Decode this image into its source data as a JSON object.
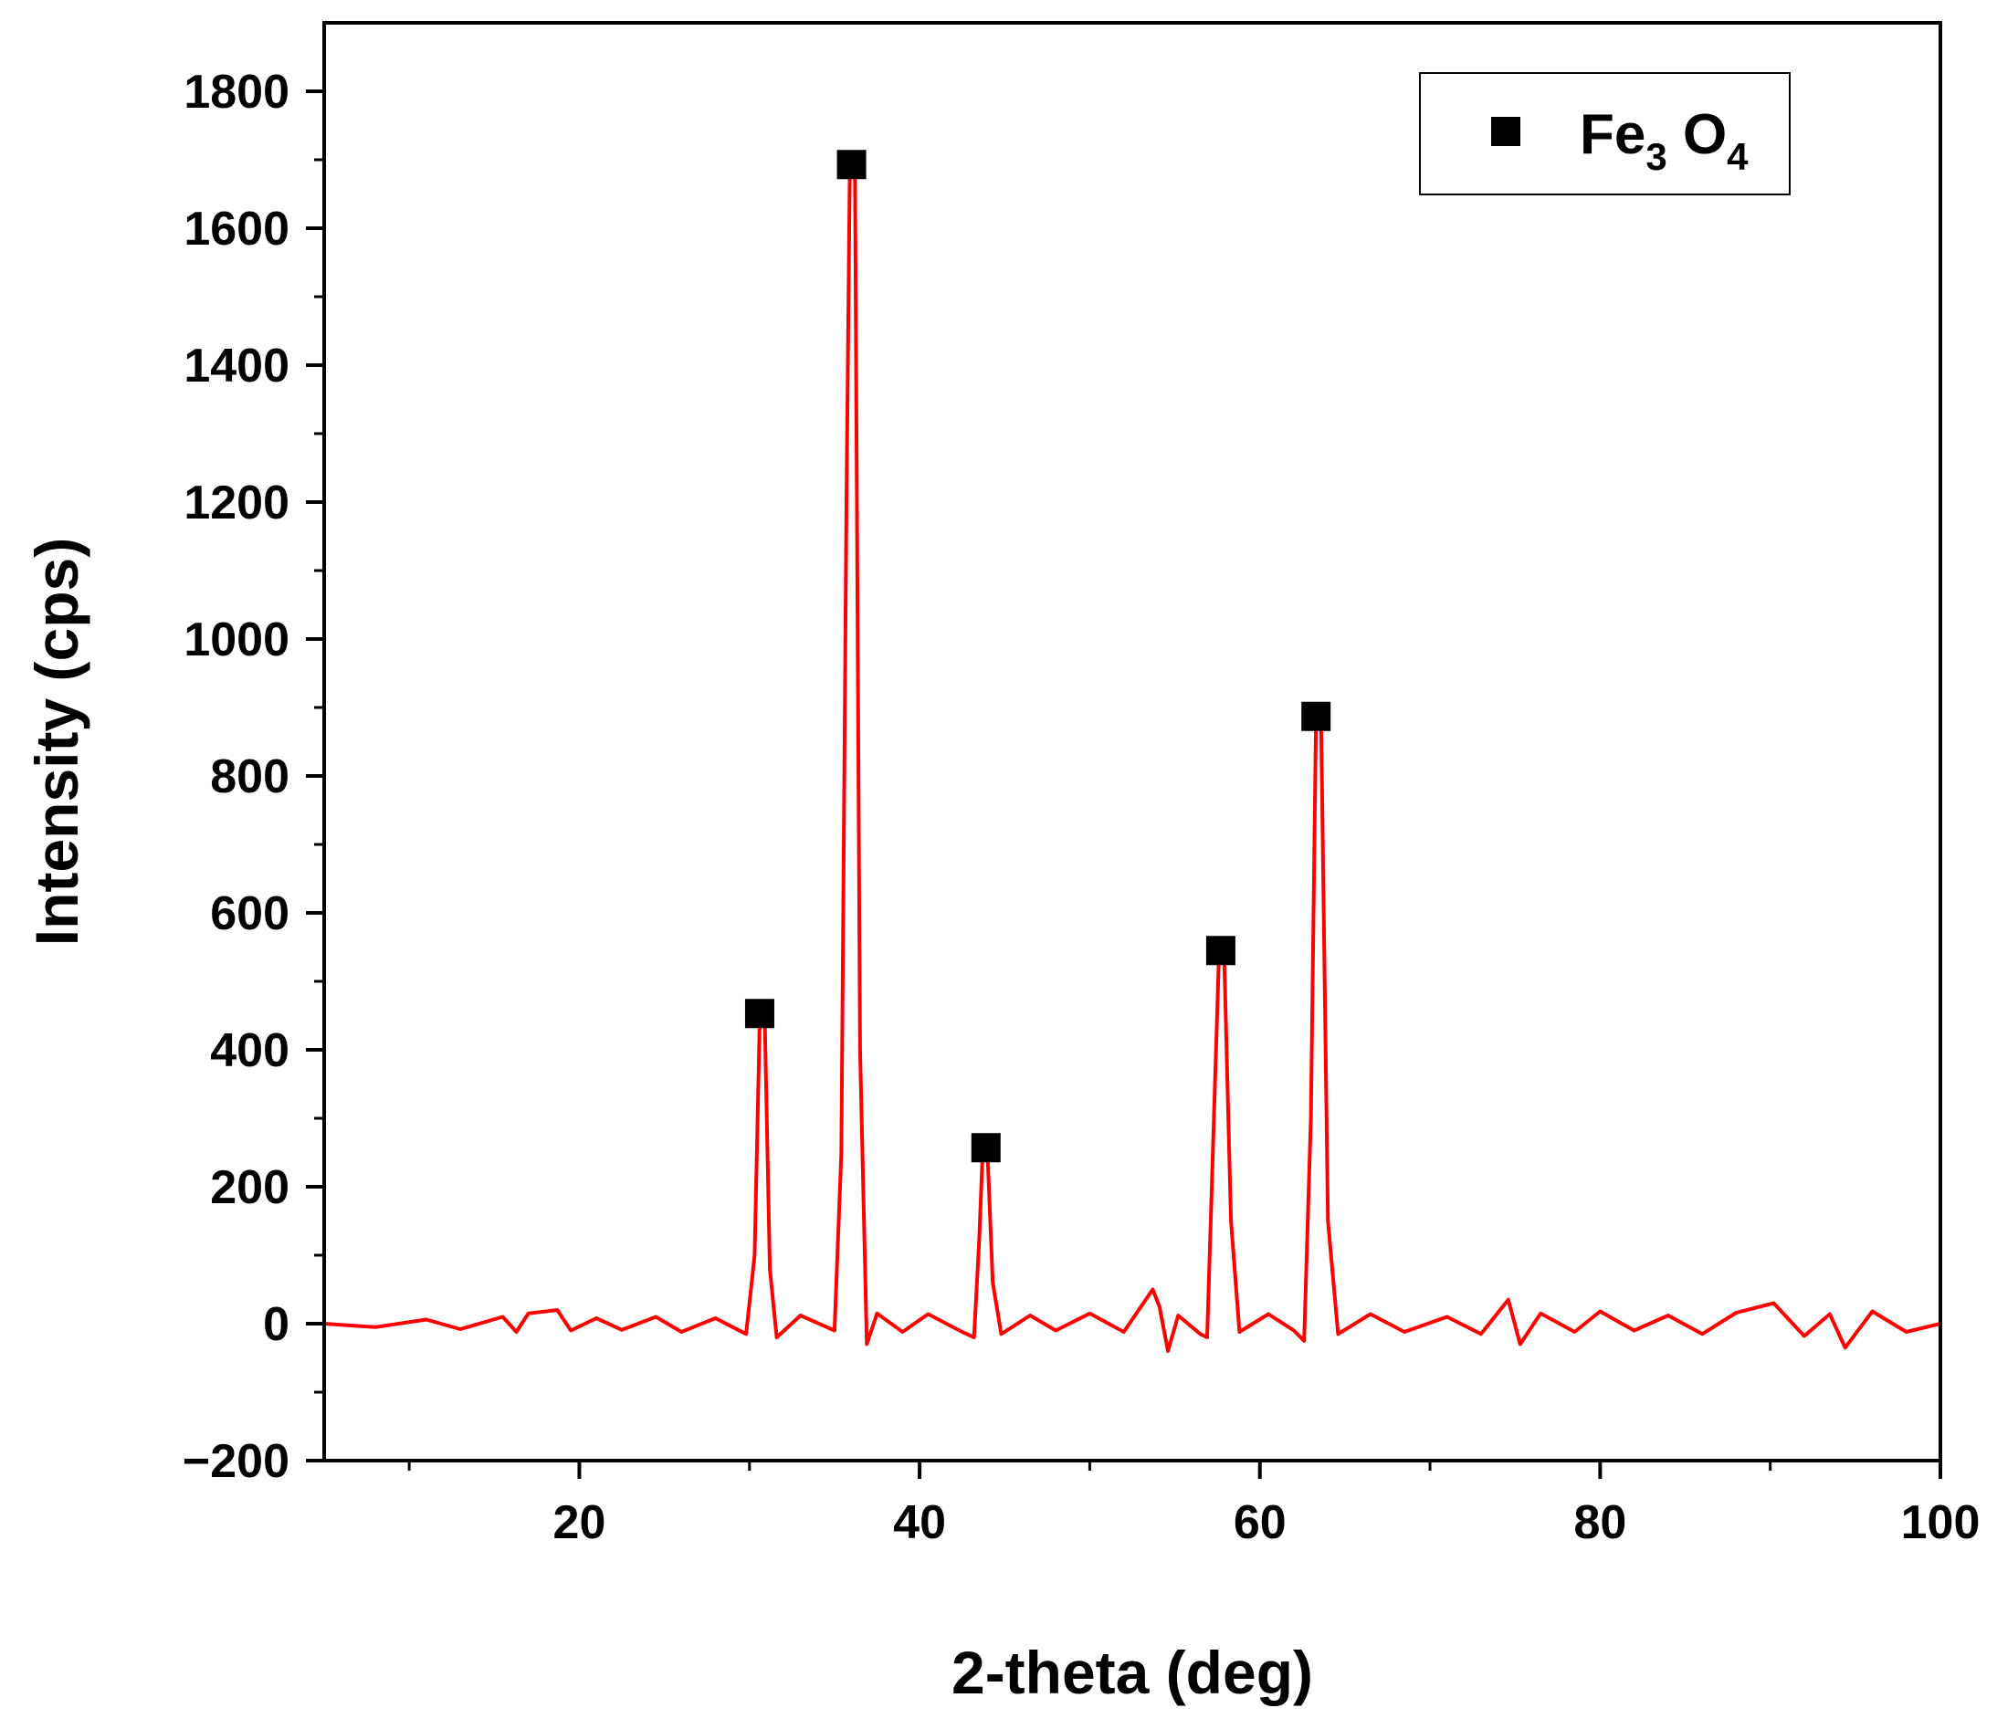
{
  "chart_data": {
    "type": "line",
    "xlabel": "2-theta (deg)",
    "ylabel": "Intensity (cps)",
    "xlim": [
      5,
      100
    ],
    "ylim": [
      -200,
      1900
    ],
    "x_ticks": [
      20,
      40,
      60,
      80,
      100
    ],
    "x_tick_labels": [
      "20",
      "40",
      "60",
      "80",
      "100"
    ],
    "y_ticks": [
      -200,
      0,
      200,
      400,
      600,
      800,
      1000,
      1200,
      1400,
      1600,
      1800
    ],
    "y_tick_labels": [
      "−200",
      "0",
      "200",
      "400",
      "600",
      "800",
      "1000",
      "1200",
      "1400",
      "1600",
      "1800"
    ],
    "grid": false,
    "legend_position": "top-right",
    "line_color": "#ff0000",
    "marker_color": "#000000",
    "legend": {
      "marker": "filled-square",
      "parts": [
        {
          "text": "Fe",
          "sub": false
        },
        {
          "text": "3",
          "sub": true
        },
        {
          "text": " O",
          "sub": false
        },
        {
          "text": "4",
          "sub": true
        }
      ]
    },
    "series": [
      {
        "style": "line",
        "x": [
          5,
          8,
          11,
          13,
          15.5,
          16.3,
          17,
          18.7,
          19.5,
          21,
          22.5,
          24.5,
          26,
          28,
          29.8,
          30.3,
          30.6,
          30.9,
          31.2,
          31.6,
          33,
          35,
          35.4,
          35.7,
          35.9,
          36.2,
          36.5,
          36.9,
          37.5,
          39,
          40.5,
          42.5,
          43.2,
          43.5,
          43.7,
          44.0,
          44.3,
          44.8,
          46.5,
          48,
          50,
          52,
          53.7,
          54.1,
          54.6,
          55.2,
          56.5,
          56.9,
          57.3,
          57.6,
          57.9,
          58.3,
          58.8,
          60.5,
          62,
          62.6,
          63.0,
          63.3,
          63.6,
          64.0,
          64.6,
          66.5,
          68.5,
          71,
          73,
          74.6,
          75.3,
          76.5,
          78.5,
          80,
          82,
          84,
          86,
          88,
          90.2,
          92,
          93.5,
          94.4,
          96,
          98,
          100
        ],
        "y": [
          0,
          -5,
          6,
          -8,
          10,
          -12,
          15,
          20,
          -10,
          8,
          -9,
          10,
          -12,
          8,
          -15,
          100,
          440,
          440,
          80,
          -20,
          12,
          -10,
          250,
          1200,
          1690,
          1690,
          400,
          -30,
          15,
          -12,
          14,
          -12,
          -20,
          120,
          245,
          245,
          60,
          -15,
          12,
          -10,
          15,
          -12,
          50,
          25,
          -40,
          12,
          -15,
          -20,
          300,
          540,
          540,
          150,
          -12,
          14,
          -10,
          -25,
          300,
          880,
          880,
          150,
          -15,
          14,
          -12,
          10,
          -15,
          35,
          -30,
          15,
          -12,
          18,
          -10,
          12,
          -15,
          16,
          30,
          -18,
          14,
          -35,
          18,
          -12,
          0
        ]
      },
      {
        "style": "markers",
        "x": [
          30.6,
          36.0,
          43.9,
          57.7,
          63.3
        ],
        "y": [
          453,
          1693,
          257,
          545,
          887
        ]
      }
    ]
  }
}
